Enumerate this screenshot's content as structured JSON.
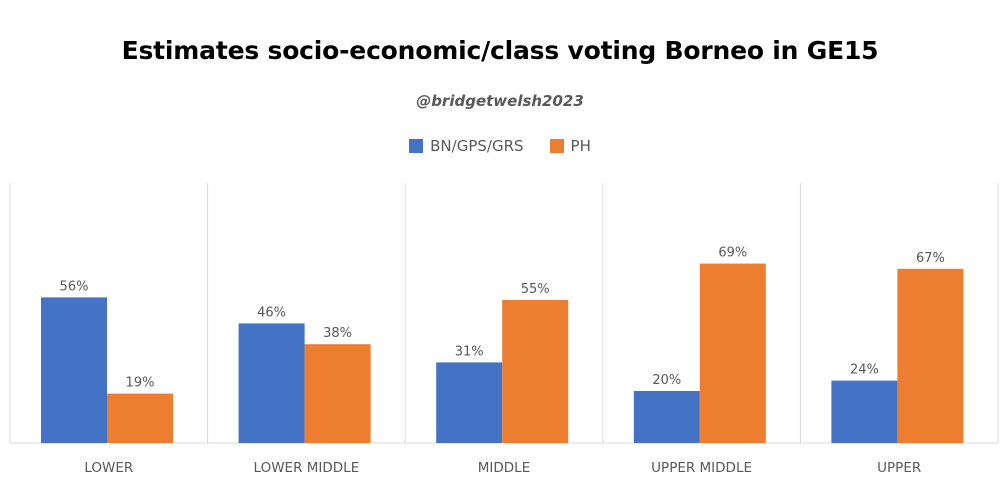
{
  "chart_data": {
    "type": "bar",
    "title": "Estimates socio-economic/class voting Borneo in GE15",
    "subtitle": "@bridgetwelsh2023",
    "categories": [
      "LOWER",
      "LOWER MIDDLE",
      "MIDDLE",
      "UPPER MIDDLE",
      "UPPER"
    ],
    "series": [
      {
        "name": "BN/GPS/GRS",
        "values": [
          56,
          46,
          31,
          20,
          24
        ],
        "color": "#4472C4"
      },
      {
        "name": "PH",
        "values": [
          19,
          38,
          55,
          69,
          67
        ],
        "color": "#ED7D31"
      }
    ],
    "value_suffix": "%",
    "ylim": [
      0,
      70
    ],
    "grid": false,
    "legend_position": "top-center",
    "xlabel": "",
    "ylabel": ""
  }
}
